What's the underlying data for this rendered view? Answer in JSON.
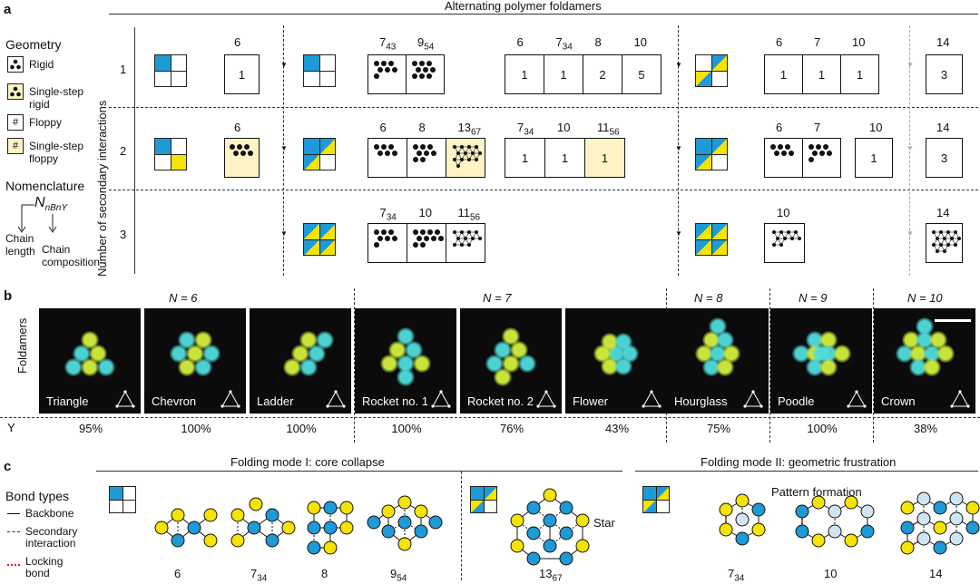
{
  "panels": {
    "a": "a",
    "b": "b",
    "c": "c"
  },
  "panel_a": {
    "title": "Alternating polymer foldamers",
    "legend_title": "Geometry",
    "legend": [
      {
        "symbol": "",
        "label": "Rigid",
        "fill": "#ffffff"
      },
      {
        "symbol": "",
        "label": "Single-step rigid",
        "fill": "#fdf3c4"
      },
      {
        "symbol": "#",
        "label": "Floppy",
        "fill": "#ffffff"
      },
      {
        "symbol": "#",
        "label": "Single-step floppy",
        "fill": "#fdf3c4"
      }
    ],
    "nomenclature": {
      "title": "Nomenclature",
      "formula": "N",
      "sub": "nBnY",
      "chain_length": "Chain length",
      "chain_composition": "Chain composition"
    },
    "y_axis_label": "Number of secondary interactions",
    "row_labels": [
      "1",
      "2",
      "3"
    ],
    "row1": {
      "g1": [
        {
          "head": "6",
          "sub": "",
          "text": "1"
        }
      ],
      "g2": [
        {
          "head": "7",
          "sub": "43",
          "text": ""
        },
        {
          "head": "9",
          "sub": "54",
          "text": ""
        }
      ],
      "g3": [
        {
          "head": "6",
          "sub": "",
          "text": "1"
        },
        {
          "head": "7",
          "sub": "34",
          "text": "1"
        },
        {
          "head": "8",
          "sub": "",
          "text": "2"
        },
        {
          "head": "10",
          "sub": "",
          "text": "5"
        }
      ],
      "g4": [
        {
          "head": "6",
          "sub": "",
          "text": "1"
        },
        {
          "head": "7",
          "sub": "",
          "text": "1"
        },
        {
          "head": "10",
          "sub": "",
          "text": "1"
        }
      ],
      "g5": [
        {
          "head": "14",
          "sub": "",
          "text": "3"
        }
      ]
    },
    "row2": {
      "g1": [
        {
          "head": "6",
          "sub": "",
          "text": ""
        }
      ],
      "g2": [
        {
          "head": "6",
          "sub": "",
          "text": ""
        },
        {
          "head": "8",
          "sub": "",
          "text": ""
        },
        {
          "head": "13",
          "sub": "67",
          "text": ""
        }
      ],
      "g3": [
        {
          "head": "7",
          "sub": "34",
          "text": "1"
        },
        {
          "head": "10",
          "sub": "",
          "text": "1"
        },
        {
          "head": "11",
          "sub": "56",
          "text": "1"
        }
      ],
      "g4": [
        {
          "head": "6",
          "sub": "",
          "text": ""
        },
        {
          "head": "7",
          "sub": "",
          "text": ""
        },
        {
          "head": "10",
          "sub": "",
          "text": "1"
        }
      ],
      "g5": [
        {
          "head": "14",
          "sub": "",
          "text": "3"
        }
      ]
    },
    "row3": {
      "g2": [
        {
          "head": "7",
          "sub": "34",
          "text": ""
        },
        {
          "head": "10",
          "sub": "",
          "text": ""
        },
        {
          "head": "11",
          "sub": "56",
          "text": ""
        }
      ],
      "g4": [
        {
          "head": "10",
          "sub": "",
          "text": ""
        }
      ],
      "g5": [
        {
          "head": "14",
          "sub": "",
          "text": ""
        }
      ]
    }
  },
  "panel_b": {
    "row_label": "Foldamers",
    "y_label": "Y",
    "groups": [
      {
        "label": "N = 6"
      },
      {
        "label": "N = 7"
      },
      {
        "label": "N = 8"
      },
      {
        "label": "N = 9"
      },
      {
        "label": "N = 10"
      }
    ],
    "images": [
      {
        "name": "Triangle",
        "yield": "95%"
      },
      {
        "name": "Chevron",
        "yield": "100%"
      },
      {
        "name": "Ladder",
        "yield": "100%"
      },
      {
        "name": "Rocket no. 1",
        "yield": "100%"
      },
      {
        "name": "Rocket no. 2",
        "yield": "76%"
      },
      {
        "name": "Flower",
        "yield": "43%"
      },
      {
        "name": "Hourglass",
        "yield": "75%"
      },
      {
        "name": "Poodle",
        "yield": "100%"
      },
      {
        "name": "Crown",
        "yield": "38%"
      }
    ]
  },
  "panel_c": {
    "mode1_title": "Folding mode I: core collapse",
    "mode2_title": "Folding mode II: geometric frustration",
    "bond_title": "Bond types",
    "bonds": [
      "Backbone",
      "Secondary interaction",
      "Locking bond"
    ],
    "star_label": "Star",
    "pattern_label": "Pattern formation",
    "structures": [
      {
        "head": "6",
        "sub": ""
      },
      {
        "head": "7",
        "sub": "34"
      },
      {
        "head": "8",
        "sub": ""
      },
      {
        "head": "9",
        "sub": "54"
      },
      {
        "head": "13",
        "sub": "67"
      },
      {
        "head": "7",
        "sub": "34"
      },
      {
        "head": "10",
        "sub": ""
      },
      {
        "head": "14",
        "sub": ""
      }
    ]
  },
  "colors": {
    "blue": "#1e9ad6",
    "yellow": "#f5e400",
    "light_yellow": "#fdf3c4",
    "locking": "#d42020"
  }
}
